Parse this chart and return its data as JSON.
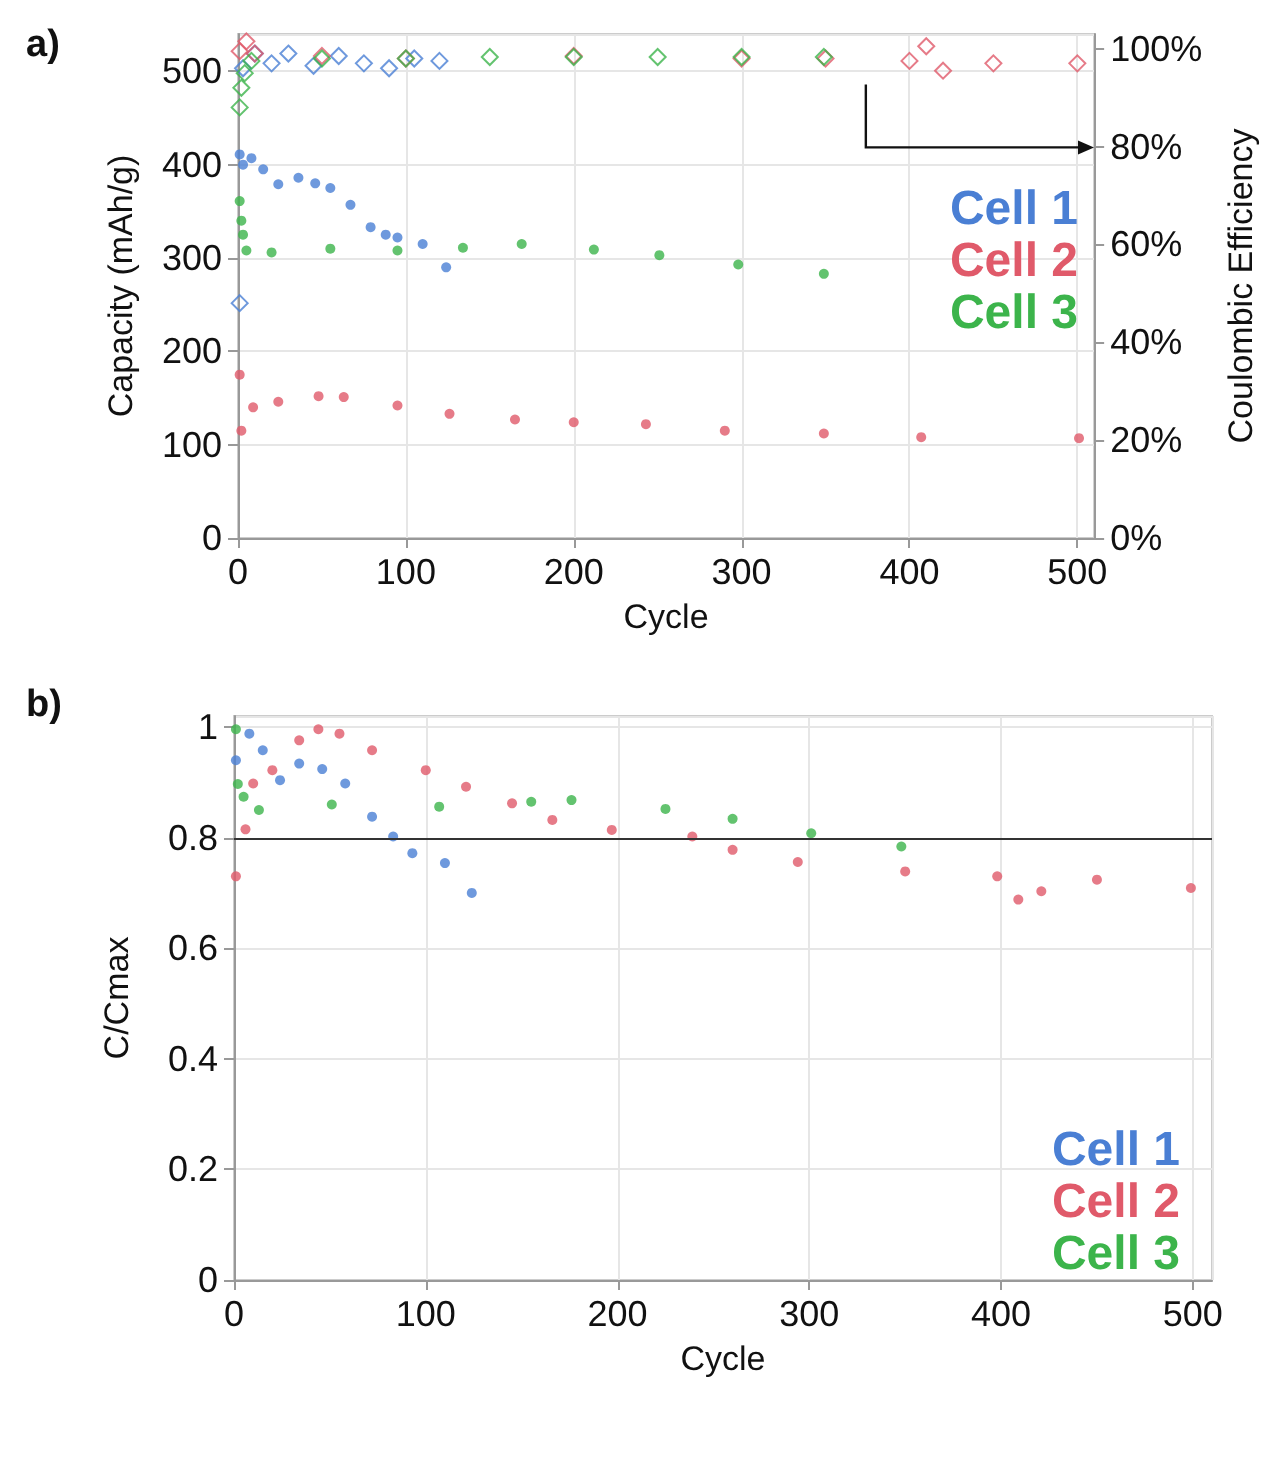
{
  "chart_data": [
    {
      "type": "scatter",
      "title": "a)",
      "xlabel": "Cycle",
      "ylabel": "Capacity (mAh/g)",
      "y2label": "Coulombic Efficiency",
      "xlim": [
        0,
        510
      ],
      "xticks": [
        0,
        100,
        200,
        300,
        400,
        500
      ],
      "ylim": [
        0,
        540
      ],
      "yticks": [
        0,
        100,
        200,
        300,
        400,
        500
      ],
      "y2lim": [
        0,
        103
      ],
      "y2ticks": [
        {
          "value": 0,
          "label": "0%"
        },
        {
          "value": 20,
          "label": "20%"
        },
        {
          "value": 40,
          "label": "40%"
        },
        {
          "value": 60,
          "label": "60%"
        },
        {
          "value": 80,
          "label": "80%"
        },
        {
          "value": 100,
          "label": "100%"
        }
      ],
      "grid": true,
      "legend": "right",
      "marker": "circle",
      "series": [
        {
          "name": "Cell 1",
          "color": "#4a7fd4",
          "x": [
            1,
            3,
            8,
            15,
            24,
            36,
            46,
            55,
            67,
            79,
            88,
            95,
            110,
            124
          ],
          "values": [
            411,
            400,
            407,
            395,
            379,
            386,
            380,
            375,
            357,
            333,
            325,
            322,
            315,
            290
          ]
        },
        {
          "name": "Cell 2",
          "color": "#e05a6a",
          "x": [
            1,
            2,
            9,
            24,
            48,
            63,
            95,
            126,
            165,
            200,
            243,
            290,
            349,
            407,
            501
          ],
          "values": [
            175,
            115,
            140,
            146,
            152,
            151,
            142,
            133,
            127,
            124,
            122,
            115,
            112,
            108,
            107
          ]
        },
        {
          "name": "Cell 3",
          "color": "#3cb44b",
          "x": [
            1,
            2,
            3,
            5,
            20,
            55,
            95,
            134,
            169,
            212,
            251,
            298,
            349
          ],
          "values": [
            361,
            340,
            325,
            308,
            306,
            310,
            308,
            311,
            315,
            309,
            303,
            293,
            283
          ]
        },
        {
          "color": "#4a7fd4",
          "axis": "y2",
          "marker": "diamond",
          "x": [
            1,
            3,
            10,
            20,
            30,
            45,
            60,
            75,
            90,
            105,
            120
          ],
          "values": [
            48,
            96,
            99,
            97,
            99,
            96.5,
            98.5,
            97,
            96,
            98,
            97.5
          ]
        },
        {
          "color": "#e05a6a",
          "axis": "y2",
          "marker": "diamond",
          "x": [
            1,
            5,
            10,
            50,
            100,
            200,
            300,
            350,
            400,
            410,
            420,
            450,
            500
          ],
          "values": [
            99.5,
            101.5,
            99,
            98.5,
            98,
            98.5,
            98,
            98,
            97.5,
            100.5,
            95.5,
            97,
            97
          ]
        },
        {
          "color": "#3cb44b",
          "axis": "y2",
          "marker": "diamond",
          "x": [
            1,
            2,
            4,
            8,
            50,
            100,
            150,
            200,
            250,
            300,
            349
          ],
          "values": [
            88,
            92,
            95,
            97.5,
            98,
            98,
            98.3,
            98.3,
            98.3,
            98.3,
            98.3
          ]
        }
      ]
    },
    {
      "type": "scatter",
      "title": "b)",
      "xlabel": "Cycle",
      "ylabel": "C/Cmax",
      "xlim": [
        0,
        510
      ],
      "xticks": [
        0,
        100,
        200,
        300,
        400,
        500
      ],
      "ylim": [
        0,
        1.02
      ],
      "yticks": [
        0,
        0.2,
        0.4,
        0.6,
        0.8,
        1
      ],
      "grid": true,
      "legend": "bottom right",
      "marker": "circle",
      "ref_lines": [
        {
          "axis": "y",
          "value": 0.8,
          "color": "#333333"
        }
      ],
      "series": [
        {
          "name": "Cell 1",
          "color": "#4a7fd4",
          "x": [
            1,
            8,
            15,
            24,
            34,
            46,
            58,
            72,
            83,
            93,
            110,
            124
          ],
          "values": [
            0.94,
            0.988,
            0.958,
            0.904,
            0.934,
            0.924,
            0.898,
            0.838,
            0.802,
            0.772,
            0.754,
            0.7
          ]
        },
        {
          "name": "Cell 2",
          "color": "#e05a6a",
          "x": [
            1,
            6,
            10,
            20,
            34,
            44,
            55,
            72,
            100,
            121,
            145,
            166,
            197,
            239,
            260,
            294,
            350,
            398,
            409,
            421,
            450,
            499
          ],
          "values": [
            0.73,
            0.815,
            0.898,
            0.922,
            0.976,
            0.996,
            0.988,
            0.958,
            0.922,
            0.892,
            0.862,
            0.832,
            0.814,
            0.802,
            0.778,
            0.756,
            0.739,
            0.73,
            0.688,
            0.703,
            0.724,
            0.709
          ]
        },
        {
          "name": "Cell 3",
          "color": "#3cb44b",
          "x": [
            1,
            2,
            5,
            13,
            51,
            107,
            155,
            176,
            225,
            260,
            301,
            348
          ],
          "values": [
            0.996,
            0.897,
            0.874,
            0.85,
            0.86,
            0.856,
            0.865,
            0.868,
            0.852,
            0.834,
            0.808,
            0.784
          ]
        }
      ]
    }
  ]
}
